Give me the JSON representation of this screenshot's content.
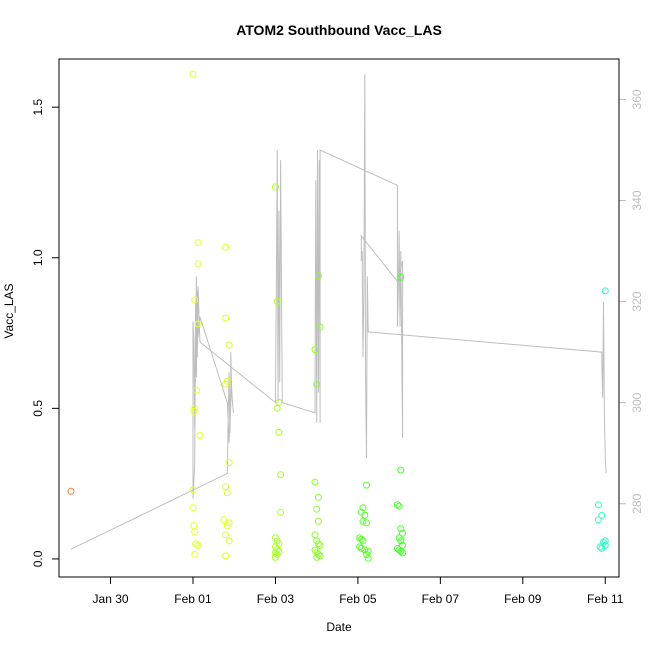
{
  "chart_data": {
    "type": "scatter",
    "title": "ATOM2 Southbound Vacc_LAS",
    "xlabel": "Date",
    "ylabel": "Vacc_LAS",
    "xlim": [
      "2022-01-28T18:00",
      "2022-02-11T08:00"
    ],
    "ylim": [
      -0.06,
      1.66
    ],
    "y2lim": [
      265.5,
      368.0
    ],
    "x_ticks": [
      {
        "t": "2022-01-30",
        "label": "Jan 30"
      },
      {
        "t": "2022-02-01",
        "label": "Feb 01"
      },
      {
        "t": "2022-02-03",
        "label": "Feb 03"
      },
      {
        "t": "2022-02-05",
        "label": "Feb 05"
      },
      {
        "t": "2022-02-07",
        "label": "Feb 07"
      },
      {
        "t": "2022-02-09",
        "label": "Feb 09"
      },
      {
        "t": "2022-02-11",
        "label": "Feb 11"
      }
    ],
    "y_ticks": [
      "0.0",
      "0.5",
      "1.0",
      "1.5"
    ],
    "y2_ticks": [
      "280",
      "300",
      "320",
      "340",
      "360"
    ],
    "line_color": "#bebebe",
    "points": [
      {
        "t": "2022-01-29T01:00",
        "y": 0.225,
        "c": "#ff7f2a"
      },
      {
        "t": "2022-02-01T00:00",
        "y": 1.61,
        "c": "#e6ff2a"
      },
      {
        "t": "2022-02-01T00:00",
        "y": 0.23,
        "c": "#e6ff2a"
      },
      {
        "t": "2022-02-01T00:30",
        "y": 0.49,
        "c": "#e6ff2a"
      },
      {
        "t": "2022-02-01T01:00",
        "y": 0.5,
        "c": "#e6ff2a"
      },
      {
        "t": "2022-02-01T01:00",
        "y": 0.86,
        "c": "#e6ff2a"
      },
      {
        "t": "2022-02-01T02:00",
        "y": 0.56,
        "c": "#e6ff2a"
      },
      {
        "t": "2022-02-01T03:00",
        "y": 1.05,
        "c": "#e6ff2a"
      },
      {
        "t": "2022-02-01T03:00",
        "y": 0.98,
        "c": "#e6ff2a"
      },
      {
        "t": "2022-02-01T03:00",
        "y": 0.78,
        "c": "#e6ff2a"
      },
      {
        "t": "2022-02-01T04:00",
        "y": 0.41,
        "c": "#e6ff2a"
      },
      {
        "t": "2022-02-01T00:00",
        "y": 0.17,
        "c": "#e6ff2a"
      },
      {
        "t": "2022-02-01T00:30",
        "y": 0.11,
        "c": "#e6ff2a"
      },
      {
        "t": "2022-02-01T01:00",
        "y": 0.09,
        "c": "#e6ff2a"
      },
      {
        "t": "2022-02-01T01:30",
        "y": 0.05,
        "c": "#e6ff2a"
      },
      {
        "t": "2022-02-01T03:00",
        "y": 0.045,
        "c": "#e6ff2a"
      },
      {
        "t": "2022-02-01T01:00",
        "y": 0.015,
        "c": "#e6ff2a"
      },
      {
        "t": "2022-02-01T19:00",
        "y": 1.035,
        "c": "#dcff2a"
      },
      {
        "t": "2022-02-01T19:00",
        "y": 0.8,
        "c": "#dcff2a"
      },
      {
        "t": "2022-02-01T21:00",
        "y": 0.71,
        "c": "#dcff2a"
      },
      {
        "t": "2022-02-01T20:00",
        "y": 0.59,
        "c": "#dcff2a"
      },
      {
        "t": "2022-02-01T19:00",
        "y": 0.58,
        "c": "#dcff2a"
      },
      {
        "t": "2022-02-01T21:00",
        "y": 0.32,
        "c": "#dcff2a"
      },
      {
        "t": "2022-02-01T19:00",
        "y": 0.24,
        "c": "#dcff2a"
      },
      {
        "t": "2022-02-01T20:00",
        "y": 0.22,
        "c": "#dcff2a"
      },
      {
        "t": "2022-02-01T18:00",
        "y": 0.13,
        "c": "#dcff2a"
      },
      {
        "t": "2022-02-01T21:00",
        "y": 0.12,
        "c": "#dcff2a"
      },
      {
        "t": "2022-02-01T20:00",
        "y": 0.11,
        "c": "#dcff2a"
      },
      {
        "t": "2022-02-01T19:00",
        "y": 0.08,
        "c": "#dcff2a"
      },
      {
        "t": "2022-02-01T21:00",
        "y": 0.06,
        "c": "#dcff2a"
      },
      {
        "t": "2022-02-01T19:00",
        "y": 0.01,
        "c": "#dcff2a"
      },
      {
        "t": "2022-02-03T00:00",
        "y": 1.235,
        "c": "#a8ff2a"
      },
      {
        "t": "2022-02-03T01:00",
        "y": 0.855,
        "c": "#a8ff2a"
      },
      {
        "t": "2022-02-03T02:00",
        "y": 0.52,
        "c": "#a8ff2a"
      },
      {
        "t": "2022-02-03T01:00",
        "y": 0.5,
        "c": "#a8ff2a"
      },
      {
        "t": "2022-02-03T02:00",
        "y": 0.42,
        "c": "#a8ff2a"
      },
      {
        "t": "2022-02-03T03:00",
        "y": 0.28,
        "c": "#a8ff2a"
      },
      {
        "t": "2022-02-03T03:00",
        "y": 0.155,
        "c": "#a8ff2a"
      },
      {
        "t": "2022-02-03T00:00",
        "y": 0.07,
        "c": "#a8ff2a"
      },
      {
        "t": "2022-02-03T01:00",
        "y": 0.06,
        "c": "#a8ff2a"
      },
      {
        "t": "2022-02-03T02:00",
        "y": 0.05,
        "c": "#a8ff2a"
      },
      {
        "t": "2022-02-03T00:00",
        "y": 0.04,
        "c": "#a8ff2a"
      },
      {
        "t": "2022-02-03T01:00",
        "y": 0.03,
        "c": "#a8ff2a"
      },
      {
        "t": "2022-02-03T02:00",
        "y": 0.025,
        "c": "#a8ff2a"
      },
      {
        "t": "2022-02-03T00:00",
        "y": 0.02,
        "c": "#a8ff2a"
      },
      {
        "t": "2022-02-03T01:00",
        "y": 0.015,
        "c": "#a8ff2a"
      },
      {
        "t": "2022-02-03T00:00",
        "y": 0.005,
        "c": "#a8ff2a"
      },
      {
        "t": "2022-02-03T23:00",
        "y": 0.695,
        "c": "#8aff2a"
      },
      {
        "t": "2022-02-04T00:00",
        "y": 0.58,
        "c": "#8aff2a"
      },
      {
        "t": "2022-02-04T01:00",
        "y": 0.94,
        "c": "#8aff2a"
      },
      {
        "t": "2022-02-04T02:00",
        "y": 0.77,
        "c": "#8aff2a"
      },
      {
        "t": "2022-02-03T23:00",
        "y": 0.255,
        "c": "#8aff2a"
      },
      {
        "t": "2022-02-04T01:00",
        "y": 0.205,
        "c": "#8aff2a"
      },
      {
        "t": "2022-02-04T00:00",
        "y": 0.165,
        "c": "#8aff2a"
      },
      {
        "t": "2022-02-04T01:00",
        "y": 0.125,
        "c": "#8aff2a"
      },
      {
        "t": "2022-02-03T23:00",
        "y": 0.08,
        "c": "#8aff2a"
      },
      {
        "t": "2022-02-04T00:00",
        "y": 0.06,
        "c": "#8aff2a"
      },
      {
        "t": "2022-02-04T01:00",
        "y": 0.05,
        "c": "#8aff2a"
      },
      {
        "t": "2022-02-04T02:00",
        "y": 0.045,
        "c": "#8aff2a"
      },
      {
        "t": "2022-02-03T23:00",
        "y": 0.03,
        "c": "#8aff2a"
      },
      {
        "t": "2022-02-04T00:00",
        "y": 0.02,
        "c": "#8aff2a"
      },
      {
        "t": "2022-02-04T01:00",
        "y": 0.015,
        "c": "#8aff2a"
      },
      {
        "t": "2022-02-04T02:00",
        "y": 0.01,
        "c": "#8aff2a"
      },
      {
        "t": "2022-02-04T00:00",
        "y": 0.005,
        "c": "#8aff2a"
      },
      {
        "t": "2022-02-05T05:00",
        "y": 0.245,
        "c": "#5aff2a"
      },
      {
        "t": "2022-02-05T03:00",
        "y": 0.17,
        "c": "#5aff2a"
      },
      {
        "t": "2022-02-05T02:00",
        "y": 0.155,
        "c": "#5aff2a"
      },
      {
        "t": "2022-02-05T04:00",
        "y": 0.145,
        "c": "#5aff2a"
      },
      {
        "t": "2022-02-05T03:00",
        "y": 0.125,
        "c": "#5aff2a"
      },
      {
        "t": "2022-02-05T05:00",
        "y": 0.12,
        "c": "#5aff2a"
      },
      {
        "t": "2022-02-05T01:00",
        "y": 0.07,
        "c": "#5aff2a"
      },
      {
        "t": "2022-02-05T02:00",
        "y": 0.065,
        "c": "#5aff2a"
      },
      {
        "t": "2022-02-05T03:00",
        "y": 0.06,
        "c": "#5aff2a"
      },
      {
        "t": "2022-02-05T01:00",
        "y": 0.04,
        "c": "#5aff2a"
      },
      {
        "t": "2022-02-05T02:00",
        "y": 0.035,
        "c": "#5aff2a"
      },
      {
        "t": "2022-02-05T04:00",
        "y": 0.03,
        "c": "#5aff2a"
      },
      {
        "t": "2022-02-05T06:00",
        "y": 0.025,
        "c": "#5aff2a"
      },
      {
        "t": "2022-02-05T05:00",
        "y": 0.015,
        "c": "#5aff2a"
      },
      {
        "t": "2022-02-05T06:00",
        "y": 0.002,
        "c": "#5aff2a"
      },
      {
        "t": "2022-02-06T01:00",
        "y": 0.935,
        "c": "#45ff2a"
      },
      {
        "t": "2022-02-06T01:00",
        "y": 0.295,
        "c": "#45ff2a"
      },
      {
        "t": "2022-02-05T23:00",
        "y": 0.18,
        "c": "#45ff2a"
      },
      {
        "t": "2022-02-06T00:00",
        "y": 0.175,
        "c": "#45ff2a"
      },
      {
        "t": "2022-02-06T01:00",
        "y": 0.1,
        "c": "#45ff2a"
      },
      {
        "t": "2022-02-06T02:00",
        "y": 0.085,
        "c": "#45ff2a"
      },
      {
        "t": "2022-02-06T00:00",
        "y": 0.07,
        "c": "#45ff2a"
      },
      {
        "t": "2022-02-06T01:00",
        "y": 0.06,
        "c": "#45ff2a"
      },
      {
        "t": "2022-02-06T02:00",
        "y": 0.045,
        "c": "#45ff2a"
      },
      {
        "t": "2022-02-05T23:00",
        "y": 0.035,
        "c": "#45ff2a"
      },
      {
        "t": "2022-02-06T00:00",
        "y": 0.03,
        "c": "#45ff2a"
      },
      {
        "t": "2022-02-06T01:00",
        "y": 0.025,
        "c": "#45ff2a"
      },
      {
        "t": "2022-02-06T02:00",
        "y": 0.02,
        "c": "#45ff2a"
      },
      {
        "t": "2022-02-11T00:00",
        "y": 0.89,
        "c": "#2affc4"
      },
      {
        "t": "2022-02-10T20:00",
        "y": 0.18,
        "c": "#2affc4"
      },
      {
        "t": "2022-02-10T22:00",
        "y": 0.145,
        "c": "#2affc4"
      },
      {
        "t": "2022-02-10T20:00",
        "y": 0.13,
        "c": "#2affc4"
      },
      {
        "t": "2022-02-11T00:00",
        "y": 0.06,
        "c": "#2affc4"
      },
      {
        "t": "2022-02-10T23:00",
        "y": 0.055,
        "c": "#2affc4"
      },
      {
        "t": "2022-02-11T00:00",
        "y": 0.045,
        "c": "#2affc4"
      },
      {
        "t": "2022-02-10T21:00",
        "y": 0.04,
        "c": "#2affc4"
      },
      {
        "t": "2022-02-10T22:00",
        "y": 0.035,
        "c": "#2affc4"
      }
    ],
    "line": [
      [
        "2022-01-29T01:00",
        271
      ],
      [
        "2022-02-01T20:00",
        286
      ],
      [
        "2022-02-01T20:30",
        298
      ],
      [
        "2022-02-01T21:00",
        306
      ],
      [
        "2022-02-01T21:30",
        294
      ],
      [
        "2022-02-01T22:00",
        300
      ],
      [
        "2022-02-01T22:00",
        310
      ],
      [
        "2022-02-01T22:30",
        303
      ],
      [
        "2022-02-01T23:00",
        300
      ],
      [
        "2022-02-01T23:30",
        298
      ],
      [
        "2022-02-01T23:00",
        300
      ],
      [
        "2022-02-01T22:00",
        303
      ],
      [
        "2022-02-01T21:00",
        292
      ],
      [
        "2022-02-01T20:00",
        300
      ],
      [
        "2022-02-01T04:00",
        317
      ],
      [
        "2022-02-01T03:00",
        313
      ],
      [
        "2022-02-01T02:30",
        322
      ],
      [
        "2022-02-01T02:00",
        305
      ],
      [
        "2022-02-01T01:30",
        320
      ],
      [
        "2022-02-01T01:00",
        295
      ],
      [
        "2022-02-01T00:30",
        312
      ],
      [
        "2022-02-01T00:00",
        316
      ],
      [
        "2022-02-01T00:00",
        293
      ],
      [
        "2022-02-01T00:00",
        281
      ],
      [
        "2022-02-01T01:00",
        288
      ],
      [
        "2022-02-01T01:30",
        314
      ],
      [
        "2022-02-01T02:00",
        325
      ],
      [
        "2022-02-01T02:30",
        309
      ],
      [
        "2022-02-01T03:00",
        323
      ],
      [
        "2022-02-01T04:00",
        312
      ],
      [
        "2022-02-03T00:00",
        300
      ],
      [
        "2022-02-03T00:30",
        322
      ],
      [
        "2022-02-03T01:00",
        350
      ],
      [
        "2022-02-03T01:30",
        300
      ],
      [
        "2022-02-03T02:00",
        338
      ],
      [
        "2022-02-03T02:30",
        304
      ],
      [
        "2022-02-03T03:00",
        348
      ],
      [
        "2022-02-03T04:00",
        300
      ],
      [
        "2022-02-03T23:00",
        298
      ],
      [
        "2022-02-03T23:00",
        302
      ],
      [
        "2022-02-03T23:30",
        344
      ],
      [
        "2022-02-04T00:00",
        296
      ],
      [
        "2022-02-04T00:30",
        350
      ],
      [
        "2022-02-04T01:00",
        302
      ],
      [
        "2022-02-04T01:30",
        348
      ],
      [
        "2022-02-04T02:00",
        296
      ],
      [
        "2022-02-04T02:00",
        350
      ],
      [
        "2022-02-05T23:00",
        343
      ],
      [
        "2022-02-05T23:00",
        315
      ],
      [
        "2022-02-05T23:30",
        322
      ],
      [
        "2022-02-06T00:00",
        334
      ],
      [
        "2022-02-06T00:30",
        315
      ],
      [
        "2022-02-06T01:00",
        330
      ],
      [
        "2022-02-06T01:30",
        311
      ],
      [
        "2022-02-06T02:00",
        293
      ],
      [
        "2022-02-06T02:00",
        328
      ],
      [
        "2022-02-05T23:00",
        324
      ],
      [
        "2022-02-05T02:00",
        333
      ],
      [
        "2022-02-05T02:00",
        328
      ],
      [
        "2022-02-05T02:30",
        330
      ],
      [
        "2022-02-05T03:00",
        309
      ],
      [
        "2022-02-05T03:30",
        322
      ],
      [
        "2022-02-05T04:00",
        365
      ],
      [
        "2022-02-05T04:30",
        304
      ],
      [
        "2022-02-05T05:00",
        289
      ],
      [
        "2022-02-05T05:30",
        325
      ],
      [
        "2022-02-05T06:00",
        314
      ],
      [
        "2022-02-10T22:00",
        310
      ],
      [
        "2022-02-10T22:00",
        308
      ],
      [
        "2022-02-10T22:30",
        301
      ],
      [
        "2022-02-10T23:00",
        320
      ],
      [
        "2022-02-10T23:30",
        297
      ],
      [
        "2022-02-11T00:00",
        289
      ],
      [
        "2022-02-11T00:30",
        286
      ]
    ]
  }
}
